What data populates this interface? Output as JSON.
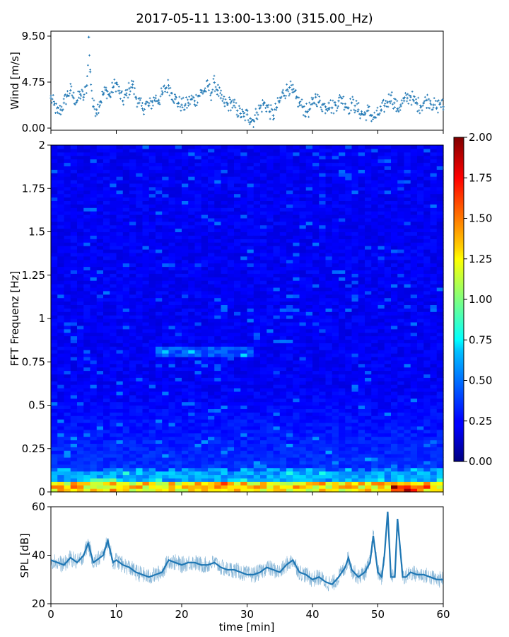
{
  "figure": {
    "title": "2017-05-11 13:00-13:00 (315.00_Hz)"
  },
  "chart_data": [
    {
      "type": "scatter",
      "title": "",
      "xlabel": "",
      "ylabel": "Wind [m/s]",
      "xlim": [
        0,
        60
      ],
      "ylim": [
        0,
        9.5
      ],
      "yticks": [
        "0.00",
        "4.75",
        "9.50"
      ],
      "grid": false,
      "marker": "+",
      "color": "#1f77b4",
      "series": [
        {
          "x": [
            0,
            0.5,
            1,
            1.5,
            2,
            2.5,
            3,
            3.5,
            4,
            4.5,
            5,
            5.5,
            5.8,
            6,
            6.5,
            7,
            7.5,
            8,
            8.5,
            9,
            9.5,
            10,
            10.5,
            11,
            11.5,
            12,
            12.5,
            13,
            13.5,
            14,
            14.5,
            15,
            15.5,
            16,
            16.5,
            17,
            17.5,
            18,
            18.5,
            19,
            19.5,
            20,
            20.5,
            21,
            21.5,
            22,
            22.5,
            23,
            23.5,
            24,
            24.5,
            25,
            25.5,
            26,
            26.5,
            27,
            27.5,
            28,
            28.5,
            29,
            29.5,
            30,
            30.5,
            31,
            31.5,
            32,
            32.5,
            33,
            33.5,
            34,
            34.5,
            35,
            35.5,
            36,
            36.5,
            37,
            37.5,
            38,
            38.5,
            39,
            39.5,
            40,
            40.5,
            41,
            41.5,
            42,
            42.5,
            43,
            43.5,
            44,
            44.5,
            45,
            45.5,
            46,
            46.5,
            47,
            47.5,
            48,
            48.5,
            49,
            49.5,
            50,
            50.5,
            51,
            51.5,
            52,
            52.5,
            53,
            53.5,
            54,
            54.5,
            55,
            55.5,
            56,
            56.5,
            57,
            57.5,
            58,
            58.5,
            59,
            59.5,
            60
          ],
          "y": [
            3.1,
            2.4,
            1.6,
            1.9,
            2.6,
            3.4,
            3.9,
            3.1,
            2.8,
            3.5,
            3.2,
            4.4,
            9.4,
            5.8,
            2.2,
            1.9,
            2.7,
            3.5,
            3.9,
            3.3,
            4.2,
            4.6,
            3.6,
            2.8,
            3.4,
            4.1,
            4.5,
            3.2,
            2.6,
            2.0,
            2.5,
            2.3,
            2.7,
            3.1,
            2.9,
            3.5,
            4.1,
            4.4,
            3.6,
            3.0,
            2.6,
            2.4,
            2.3,
            2.6,
            3.0,
            2.8,
            3.3,
            3.7,
            3.9,
            4.3,
            3.6,
            4.7,
            3.9,
            3.1,
            2.6,
            2.4,
            2.6,
            2.3,
            1.8,
            1.5,
            1.2,
            1.4,
            1.0,
            0.8,
            1.6,
            2.1,
            2.5,
            2.3,
            1.7,
            1.3,
            2.1,
            2.8,
            3.6,
            3.9,
            4.2,
            3.7,
            3.1,
            2.6,
            2.2,
            1.7,
            1.9,
            2.5,
            3.2,
            2.7,
            2.4,
            2.2,
            2.6,
            2.1,
            2.4,
            2.8,
            3.1,
            2.5,
            2.1,
            2.6,
            2.3,
            1.9,
            1.5,
            1.4,
            1.8,
            1.3,
            1.1,
            1.4,
            1.8,
            2.3,
            2.7,
            3.4,
            2.6,
            2.0,
            2.4,
            2.8,
            3.1,
            3.3,
            2.8,
            2.5,
            2.3,
            2.6,
            2.9,
            2.8,
            2.4,
            2.1,
            2.6,
            2.2
          ]
        }
      ]
    },
    {
      "type": "heatmap",
      "title": "",
      "xlabel": "",
      "ylabel": "FFT Frequenz [Hz]",
      "xlim": [
        0,
        60
      ],
      "ylim": [
        0,
        2
      ],
      "yticks": [
        "0",
        "0.25",
        "0.5",
        "0.75",
        "1",
        "1.25",
        "1.5",
        "1.75",
        "2"
      ],
      "colormap": "jet",
      "colorbar": {
        "range": [
          0.0,
          2.0
        ],
        "ticks": [
          "0.00",
          "0.25",
          "0.50",
          "0.75",
          "1.00",
          "1.25",
          "1.50",
          "1.75",
          "2.00"
        ]
      },
      "features": [
        {
          "x_start": 0,
          "x_end": 60,
          "y_start": 0.0,
          "y_end": 0.05,
          "value": 1.4
        },
        {
          "x_start": 0,
          "x_end": 60,
          "y_start": 0.05,
          "y_end": 0.12,
          "value": 0.6
        },
        {
          "x_start": 52,
          "x_end": 56,
          "y_start": 0.0,
          "y_end": 0.04,
          "value": 2.0
        },
        {
          "x_start": 6,
          "x_end": 11,
          "y_start": 0.05,
          "y_end": 0.08,
          "value": 0.9
        },
        {
          "x_start": 16,
          "x_end": 31,
          "y_start": 0.78,
          "y_end": 0.84,
          "value": 0.45
        }
      ]
    },
    {
      "type": "line",
      "title": "",
      "xlabel": "time [min]",
      "ylabel": "SPL [dB]",
      "xlim": [
        0,
        60
      ],
      "ylim": [
        20,
        60
      ],
      "xticks": [
        "0",
        "10",
        "20",
        "30",
        "40",
        "50",
        "60"
      ],
      "yticks": [
        "20",
        "40",
        "60"
      ],
      "grid": false,
      "color": "#1f77b4",
      "series": [
        {
          "x": [
            0,
            1,
            2,
            3,
            4,
            5,
            5.7,
            6.5,
            7,
            8,
            8.7,
            9.5,
            10,
            11,
            12,
            13,
            14,
            15,
            16,
            17,
            18,
            19,
            20,
            21,
            22,
            23,
            24,
            25,
            26,
            27,
            28,
            29,
            30,
            31,
            32,
            33,
            34,
            35,
            36,
            37,
            38,
            39,
            40,
            41,
            42,
            43,
            44,
            45,
            45.5,
            46,
            47,
            48,
            48.8,
            49.3,
            50,
            50.6,
            51,
            51.5,
            52,
            52.6,
            53,
            53.8,
            54.3,
            55,
            56,
            57,
            58,
            59,
            60
          ],
          "y": [
            38,
            37,
            36,
            39,
            37,
            40,
            45,
            37,
            38,
            40,
            46,
            37,
            38,
            36,
            35,
            33,
            32,
            31,
            32,
            33,
            38,
            37,
            36,
            37,
            37,
            36,
            36,
            37,
            35,
            34,
            34,
            33,
            32,
            32,
            33,
            35,
            34,
            33,
            36,
            38,
            33,
            32,
            30,
            31,
            29,
            28,
            31,
            35,
            39,
            34,
            31,
            33,
            37,
            48,
            33,
            31,
            40,
            58,
            31,
            31,
            55,
            31,
            31,
            33,
            32,
            32,
            31,
            30,
            30
          ]
        }
      ]
    }
  ]
}
